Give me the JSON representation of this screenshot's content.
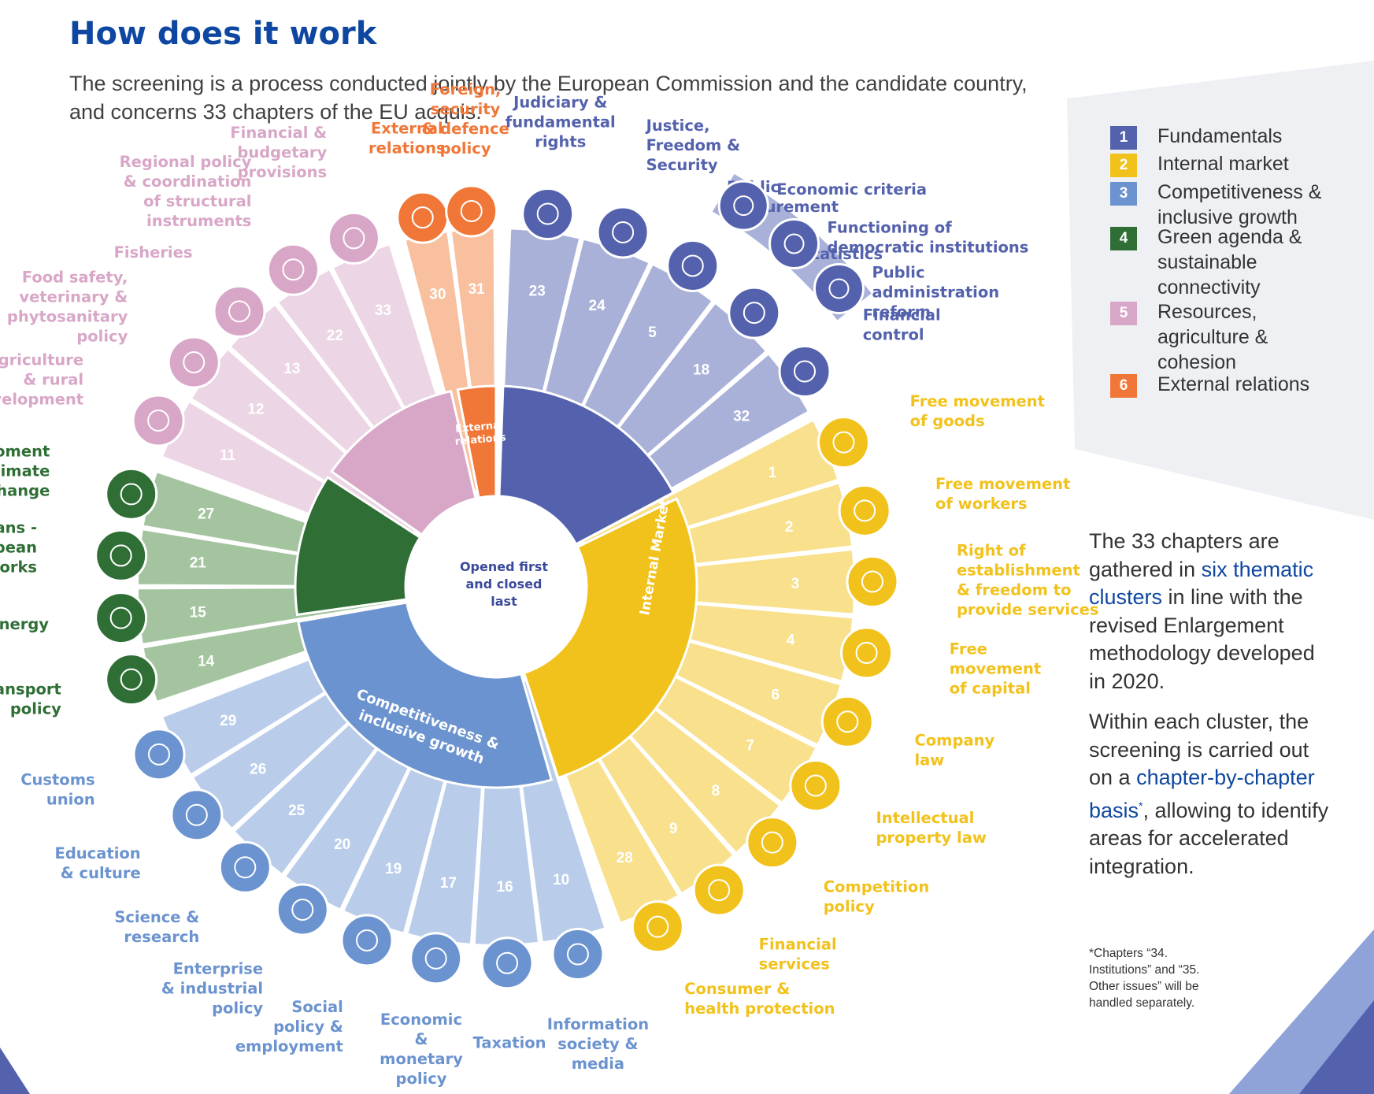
{
  "title": "How does it work",
  "intro": "The screening is a process conducted jointly by the European Commission and the candidate country, and concerns 33 chapters of the EU acquis.",
  "center_label": [
    "Opened first",
    "and closed",
    "last"
  ],
  "colors": {
    "fundamentals": "#5462ad",
    "fundamentals_light": "#aab1d9",
    "internal": "#f2c21c",
    "internal_light": "#f8e08d",
    "competitiveness": "#6b93cf",
    "competitiveness_light": "#b9cdeb",
    "green": "#2f6f35",
    "green_light": "#a3c49e",
    "resources": "#d8a7c7",
    "resources_light": "#ecd5e4",
    "external": "#f07737",
    "external_light": "#f8c09e",
    "title_blue": "#0e47a1"
  },
  "legend": [
    {
      "num": "1",
      "label": "Fundamentals",
      "color": "#5462ad"
    },
    {
      "num": "2",
      "label": "Internal market",
      "color": "#f2c21c"
    },
    {
      "num": "3",
      "label": "Competitiveness & inclusive growth",
      "color": "#6b93cf"
    },
    {
      "num": "4",
      "label": "Green agenda & sustainable connectivity",
      "color": "#2f6f35"
    },
    {
      "num": "5",
      "label": "Resources, agriculture & cohesion",
      "color": "#d8a7c7"
    },
    {
      "num": "6",
      "label": "External relations",
      "color": "#f07737"
    }
  ],
  "cluster_labels": {
    "external": [
      "External",
      "relations"
    ],
    "internal": "Internal Market",
    "competitiveness": [
      "Competitiveness &",
      "inclusive growth"
    ]
  },
  "side_note": {
    "p1_a": "The 33 chapters are gathered in ",
    "p1_hl": "six thematic clusters",
    "p1_b": " in line with the revised Enlargement methodology developed in 2020.",
    "p2_a": "Within each cluster, the screening is carried out on a ",
    "p2_hl": "chapter-by-chapter basis",
    "p2_sup": "*",
    "p2_b": ", allowing to identify areas for accelerated integration."
  },
  "footnote": "*Chapters “34. Institutions” and “35. Other issues” will be handled separately.",
  "fundamentals_arc": [
    {
      "icon": "coins-icon",
      "label": [
        "Economic criteria"
      ]
    },
    {
      "icon": "raised-hands-icon",
      "label": [
        "Functioning of",
        "democratic institutions"
      ]
    },
    {
      "icon": "institution-building-icon",
      "label": [
        "Public",
        "administration",
        "reform"
      ]
    }
  ],
  "chapters": [
    {
      "num": "23",
      "cluster": "fundamentals",
      "icon": "gavel-icon",
      "label": [
        "Judiciary &",
        "fundamental",
        "rights"
      ]
    },
    {
      "num": "24",
      "cluster": "fundamentals",
      "icon": "scales-icon",
      "label": [
        "Justice,",
        "Freedom &",
        "Security"
      ]
    },
    {
      "num": "5",
      "cluster": "fundamentals",
      "icon": "document-pen-icon",
      "label": [
        "Public",
        "procurement"
      ]
    },
    {
      "num": "18",
      "cluster": "fundamentals",
      "icon": "statistics-icon",
      "label": [
        "Statistics"
      ]
    },
    {
      "num": "32",
      "cluster": "fundamentals",
      "icon": "coins-icon",
      "label": [
        "Financial",
        "control"
      ]
    },
    {
      "num": "1",
      "cluster": "internal",
      "icon": "boxes-icon",
      "label": [
        "Free movement",
        "of goods"
      ]
    },
    {
      "num": "2",
      "cluster": "internal",
      "icon": "worker-icon",
      "label": [
        "Free movement",
        "of workers"
      ]
    },
    {
      "num": "3",
      "cluster": "internal",
      "icon": "delivery-truck-icon",
      "label": [
        "Right of",
        "establishment",
        "& freedom to",
        "provide services"
      ]
    },
    {
      "num": "4",
      "cluster": "internal",
      "icon": "network-globe-icon",
      "label": [
        "Free",
        "movement",
        "of capital"
      ]
    },
    {
      "num": "6",
      "cluster": "internal",
      "icon": "certificate-icon",
      "label": [
        "Company",
        "law"
      ]
    },
    {
      "num": "7",
      "cluster": "internal",
      "icon": "lightbulb-icon",
      "label": [
        "Intellectual",
        "property law"
      ]
    },
    {
      "num": "8",
      "cluster": "internal",
      "icon": "podium-icon",
      "label": [
        "Competition",
        "policy"
      ]
    },
    {
      "num": "9",
      "cluster": "internal",
      "icon": "report-chart-icon",
      "label": [
        "Financial",
        "services"
      ]
    },
    {
      "num": "28",
      "cluster": "internal",
      "icon": "heart-hands-icon",
      "label": [
        "Consumer &",
        "health protection"
      ]
    },
    {
      "num": "10",
      "cluster": "competitiveness",
      "icon": "newspaper-icon",
      "label": [
        "Information",
        "society &",
        "media"
      ]
    },
    {
      "num": "16",
      "cluster": "competitiveness",
      "icon": "tax-bag-icon",
      "label": [
        "Taxation"
      ]
    },
    {
      "num": "17",
      "cluster": "competitiveness",
      "icon": "coins-icon",
      "label": [
        "Economic",
        "&",
        "monetary",
        "policy"
      ]
    },
    {
      "num": "19",
      "cluster": "competitiveness",
      "icon": "people-icon",
      "label": [
        "Social",
        "policy &",
        "employment"
      ]
    },
    {
      "num": "20",
      "cluster": "competitiveness",
      "icon": "factory-icon",
      "label": [
        "Enterprise",
        "& industrial",
        "policy"
      ]
    },
    {
      "num": "25",
      "cluster": "competitiveness",
      "icon": "molecule-icon",
      "label": [
        "Science &",
        "research"
      ]
    },
    {
      "num": "26",
      "cluster": "competitiveness",
      "icon": "theatre-masks-icon",
      "label": [
        "Education",
        "& culture"
      ]
    },
    {
      "num": "29",
      "cluster": "competitiveness",
      "icon": "barrier-gate-icon",
      "label": [
        "Customs",
        "union"
      ]
    },
    {
      "num": "14",
      "cluster": "green",
      "icon": "car-icon",
      "label": [
        "Transport",
        "policy"
      ]
    },
    {
      "num": "15",
      "cluster": "green",
      "icon": "plug-icon",
      "label": [
        "Energy"
      ]
    },
    {
      "num": "21",
      "cluster": "green",
      "icon": "road-icon",
      "label": [
        "Trans -",
        "European",
        "networks"
      ]
    },
    {
      "num": "27",
      "cluster": "green",
      "icon": "earth-hands-icon",
      "label": [
        "Enviroment",
        "& climate",
        "change"
      ]
    },
    {
      "num": "11",
      "cluster": "resources",
      "icon": "field-icon",
      "label": [
        "Agriculture",
        "& rural",
        "development"
      ]
    },
    {
      "num": "12",
      "cluster": "resources",
      "icon": "food-icon",
      "label": [
        "Food safety,",
        "veterinary &",
        "phytosanitary",
        "policy"
      ]
    },
    {
      "num": "13",
      "cluster": "resources",
      "icon": "fish-icon",
      "label": [
        "Fisheries"
      ]
    },
    {
      "num": "22",
      "cluster": "resources",
      "icon": "raised-hands-icon",
      "label": [
        "Regional policy",
        "& coordination",
        "of structural",
        "instruments"
      ]
    },
    {
      "num": "33",
      "cluster": "resources",
      "icon": "checklist-icon",
      "label": [
        "Financial &",
        "budgetary",
        "provisions"
      ]
    },
    {
      "num": "30",
      "cluster": "external",
      "icon": "handshake-icon",
      "label": [
        "External",
        "relations"
      ]
    },
    {
      "num": "31",
      "cluster": "external",
      "icon": "shield-check-icon",
      "label": [
        "Foreign,",
        "security",
        "& defence",
        "policy"
      ]
    }
  ]
}
